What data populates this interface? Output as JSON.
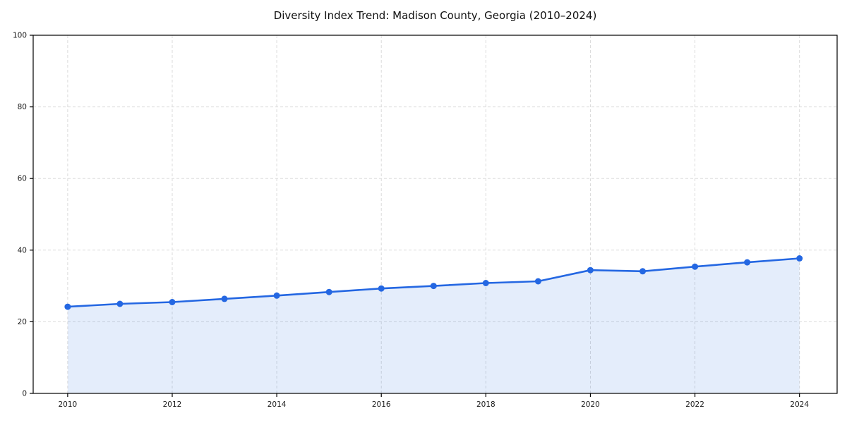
{
  "chart_data": {
    "type": "area",
    "title": "Diversity Index Trend: Madison County, Georgia (2010–2024)",
    "x": [
      2010,
      2011,
      2012,
      2013,
      2014,
      2015,
      2016,
      2017,
      2018,
      2019,
      2020,
      2021,
      2022,
      2023,
      2024
    ],
    "series": [
      {
        "name": "Diversity Index",
        "values": [
          24.2,
          25.0,
          25.5,
          26.4,
          27.3,
          28.3,
          29.3,
          30.0,
          30.8,
          31.3,
          34.4,
          34.1,
          35.4,
          36.6,
          37.7
        ]
      }
    ],
    "xlabel": "",
    "ylabel": "",
    "xlim": [
      2009.34,
      2024.72
    ],
    "ylim": [
      0,
      100
    ],
    "x_ticks": [
      2010,
      2012,
      2014,
      2016,
      2018,
      2020,
      2022,
      2024
    ],
    "y_ticks": [
      0,
      20,
      40,
      60,
      80,
      100
    ],
    "grid": true,
    "grid_style": "dashed",
    "legend": "none",
    "marker": "circle",
    "colors": {
      "line": "#2467e2",
      "fill": "rgba(36, 103, 226, 0.12)",
      "grid": "#dbdbdb",
      "spine": "#000000",
      "text": "#1a1a1a"
    }
  }
}
